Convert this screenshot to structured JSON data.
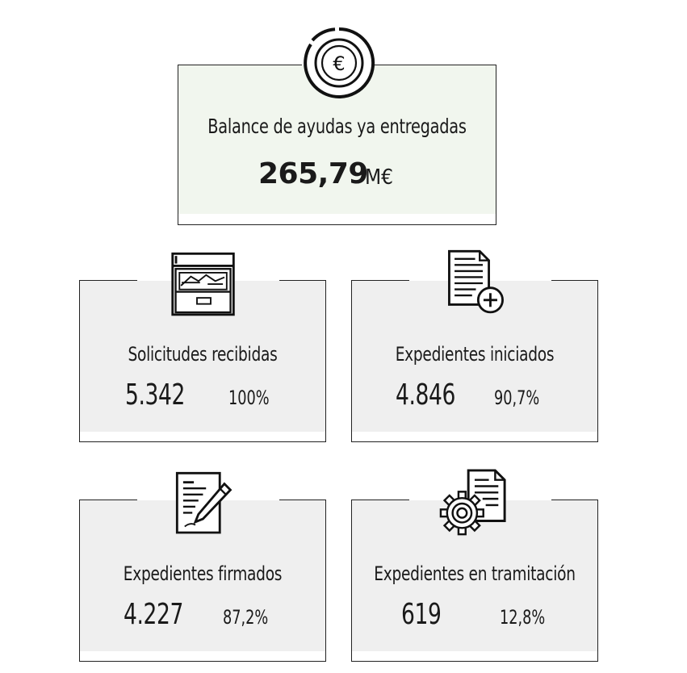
{
  "hero": {
    "title": "Balance de ayudas ya entregadas",
    "amount": "265,79",
    "unit": "M€",
    "icon": "euro-coin-icon"
  },
  "cards": [
    {
      "title": "Solicitudes recibidas",
      "value": "5.342",
      "percent": "100%",
      "icon": "filing-cabinet-icon"
    },
    {
      "title": "Expedientes iniciados",
      "value": "4.846",
      "percent": "90,7%",
      "icon": "document-add-icon"
    },
    {
      "title": "Expedientes firmados",
      "value": "4.227",
      "percent": "87,2%",
      "icon": "document-sign-icon"
    },
    {
      "title": "Expedientes en tramitación",
      "value": "619",
      "percent": "12,8%",
      "icon": "document-gear-icon"
    }
  ],
  "colors": {
    "hero_bg": "#f1f6ee",
    "card_bg": "#efefef",
    "ink": "#1a1a1a"
  }
}
